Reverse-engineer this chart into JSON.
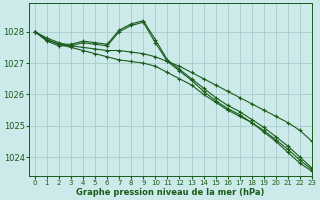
{
  "bg_color": "#cceaea",
  "grid_color": "#aacccc",
  "line_color": "#1a5c1a",
  "title": "Graphe pression niveau de la mer (hPa)",
  "xlim": [
    -0.5,
    23
  ],
  "ylim": [
    1023.4,
    1028.9
  ],
  "yticks": [
    1024,
    1025,
    1026,
    1027,
    1028
  ],
  "xticks": [
    0,
    1,
    2,
    3,
    4,
    5,
    6,
    7,
    8,
    9,
    10,
    11,
    12,
    13,
    14,
    15,
    16,
    17,
    18,
    19,
    20,
    21,
    22,
    23
  ],
  "series": [
    {
      "x": [
        0,
        1,
        2,
        3,
        4,
        5,
        6,
        7,
        8,
        9,
        10,
        11,
        12,
        13,
        14,
        15,
        16,
        17,
        18,
        19,
        20,
        21,
        22,
        23
      ],
      "y": [
        1028.0,
        1027.8,
        1027.65,
        1027.55,
        1027.5,
        1027.45,
        1027.4,
        1027.4,
        1027.35,
        1027.3,
        1027.2,
        1027.05,
        1026.9,
        1026.7,
        1026.5,
        1026.3,
        1026.1,
        1025.9,
        1025.7,
        1025.5,
        1025.3,
        1025.1,
        1024.85,
        1024.5
      ],
      "marker": "+"
    },
    {
      "x": [
        0,
        1,
        2,
        3,
        4,
        5,
        6,
        7,
        8,
        9,
        10,
        11,
        12,
        13,
        14,
        15,
        16,
        17,
        18,
        19,
        20,
        21,
        22,
        23
      ],
      "y": [
        1028.0,
        1027.75,
        1027.6,
        1027.6,
        1027.7,
        1027.65,
        1027.6,
        1028.05,
        1028.25,
        1028.35,
        1027.75,
        1027.1,
        1026.8,
        1026.5,
        1026.2,
        1025.9,
        1025.65,
        1025.45,
        1025.2,
        1024.95,
        1024.65,
        1024.35,
        1024.0,
        1023.65
      ],
      "marker": "+"
    },
    {
      "x": [
        0,
        1,
        2,
        3,
        4,
        5,
        6,
        7,
        8,
        9,
        10,
        11,
        12,
        13,
        14,
        15,
        16,
        17,
        18,
        19,
        20,
        21,
        22,
        23
      ],
      "y": [
        1028.0,
        1027.7,
        1027.55,
        1027.55,
        1027.65,
        1027.6,
        1027.55,
        1028.0,
        1028.2,
        1028.3,
        1027.65,
        1027.05,
        1026.75,
        1026.45,
        1026.1,
        1025.8,
        1025.55,
        1025.35,
        1025.1,
        1024.8,
        1024.5,
        1024.15,
        1023.8,
        1023.55
      ],
      "marker": "+"
    },
    {
      "x": [
        0,
        1,
        2,
        3,
        4,
        5,
        6,
        7,
        8,
        9,
        10,
        11,
        12,
        13,
        14,
        15,
        16,
        17,
        18,
        19,
        20,
        21,
        22,
        23
      ],
      "y": [
        1028.0,
        1027.75,
        1027.6,
        1027.5,
        1027.4,
        1027.3,
        1027.2,
        1027.1,
        1027.05,
        1027.0,
        1026.9,
        1026.7,
        1026.5,
        1026.3,
        1026.0,
        1025.75,
        1025.5,
        1025.3,
        1025.1,
        1024.85,
        1024.55,
        1024.25,
        1023.9,
        1023.6
      ],
      "marker": "+"
    }
  ]
}
